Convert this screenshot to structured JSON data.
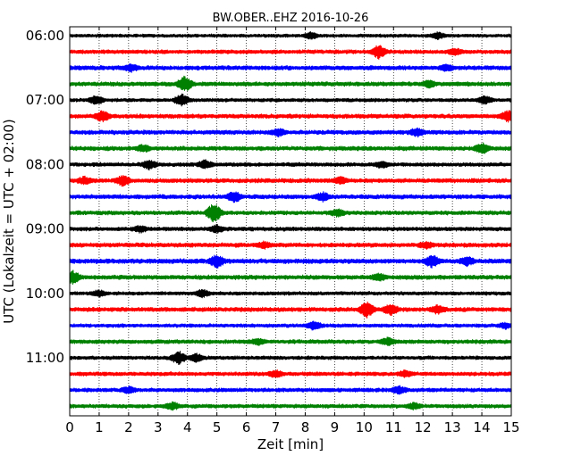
{
  "chart_data": {
    "type": "line",
    "title": "BW.OBER..EHZ 2016-10-26",
    "xlabel": "Zeit  [min]",
    "ylabel": "UTC (Lokalzeit = UTC + 02:00)",
    "xlim": [
      0,
      15
    ],
    "x_ticks": [
      "0",
      "1",
      "2",
      "3",
      "4",
      "5",
      "6",
      "7",
      "8",
      "9",
      "10",
      "11",
      "12",
      "13",
      "14",
      "15"
    ],
    "y_ticks": [
      "06:00",
      "07:00",
      "08:00",
      "09:00",
      "10:00",
      "11:00"
    ],
    "grid": "vertical-dotted",
    "row_minutes": 15,
    "color_cycle": [
      "#000000",
      "#ff0000",
      "#0000ff",
      "#008000"
    ],
    "traces": [
      {
        "start": "06:00",
        "level": 0.45,
        "events": [
          [
            8.2,
            0.8
          ],
          [
            12.5,
            0.8
          ]
        ]
      },
      {
        "start": "06:15",
        "level": 0.55,
        "events": [
          [
            10.5,
            1.6
          ],
          [
            13.1,
            0.8
          ]
        ]
      },
      {
        "start": "06:30",
        "level": 0.6,
        "events": [
          [
            2.1,
            0.8
          ],
          [
            12.8,
            0.7
          ]
        ]
      },
      {
        "start": "06:45",
        "level": 0.6,
        "events": [
          [
            3.9,
            1.9
          ],
          [
            12.2,
            0.8
          ]
        ]
      },
      {
        "start": "07:00",
        "level": 0.5,
        "events": [
          [
            0.9,
            1.1
          ],
          [
            3.8,
            1.5
          ],
          [
            14.1,
            1.0
          ]
        ]
      },
      {
        "start": "07:15",
        "level": 0.6,
        "events": [
          [
            1.1,
            1.3
          ],
          [
            14.9,
            1.3
          ]
        ]
      },
      {
        "start": "07:30",
        "level": 0.6,
        "events": [
          [
            7.1,
            0.9
          ],
          [
            11.8,
            1.0
          ]
        ]
      },
      {
        "start": "07:45",
        "level": 0.6,
        "events": [
          [
            2.5,
            0.8
          ],
          [
            14.0,
            1.3
          ]
        ]
      },
      {
        "start": "08:00",
        "level": 0.55,
        "events": [
          [
            2.7,
            1.1
          ],
          [
            4.6,
            1.0
          ],
          [
            10.6,
            0.8
          ]
        ]
      },
      {
        "start": "08:15",
        "level": 0.6,
        "events": [
          [
            0.5,
            0.9
          ],
          [
            1.8,
            1.2
          ],
          [
            9.2,
            0.8
          ]
        ]
      },
      {
        "start": "08:30",
        "level": 0.6,
        "events": [
          [
            5.6,
            1.3
          ],
          [
            8.6,
            1.0
          ]
        ]
      },
      {
        "start": "08:45",
        "level": 0.55,
        "events": [
          [
            4.9,
            2.4
          ],
          [
            9.1,
            0.9
          ]
        ]
      },
      {
        "start": "09:00",
        "level": 0.55,
        "events": [
          [
            2.4,
            0.8
          ],
          [
            5.0,
            0.9
          ]
        ]
      },
      {
        "start": "09:15",
        "level": 0.6,
        "events": [
          [
            6.6,
            0.8
          ],
          [
            12.1,
            0.8
          ]
        ]
      },
      {
        "start": "09:30",
        "level": 0.65,
        "events": [
          [
            5.0,
            1.5
          ],
          [
            12.3,
            1.4
          ],
          [
            13.5,
            1.0
          ]
        ]
      },
      {
        "start": "09:45",
        "level": 0.6,
        "events": [
          [
            0.1,
            1.5
          ],
          [
            10.5,
            0.9
          ]
        ]
      },
      {
        "start": "10:00",
        "level": 0.5,
        "events": [
          [
            1.0,
            0.8
          ],
          [
            4.5,
            0.9
          ]
        ]
      },
      {
        "start": "10:15",
        "level": 0.6,
        "events": [
          [
            10.1,
            1.8
          ],
          [
            10.9,
            1.3
          ],
          [
            12.5,
            1.0
          ]
        ]
      },
      {
        "start": "10:30",
        "level": 0.5,
        "events": [
          [
            8.3,
            1.1
          ],
          [
            14.8,
            0.7
          ]
        ]
      },
      {
        "start": "10:45",
        "level": 0.55,
        "events": [
          [
            6.4,
            0.8
          ],
          [
            10.8,
            0.9
          ]
        ]
      },
      {
        "start": "11:00",
        "level": 0.5,
        "events": [
          [
            3.7,
            1.6
          ],
          [
            4.3,
            1.0
          ]
        ]
      },
      {
        "start": "11:15",
        "level": 0.55,
        "events": [
          [
            7.0,
            0.9
          ],
          [
            11.4,
            0.8
          ]
        ]
      },
      {
        "start": "11:30",
        "level": 0.55,
        "events": [
          [
            2.0,
            0.8
          ],
          [
            11.2,
            0.9
          ]
        ]
      },
      {
        "start": "11:45",
        "level": 0.55,
        "events": [
          [
            3.5,
            0.9
          ],
          [
            11.7,
            0.8
          ]
        ]
      }
    ]
  }
}
